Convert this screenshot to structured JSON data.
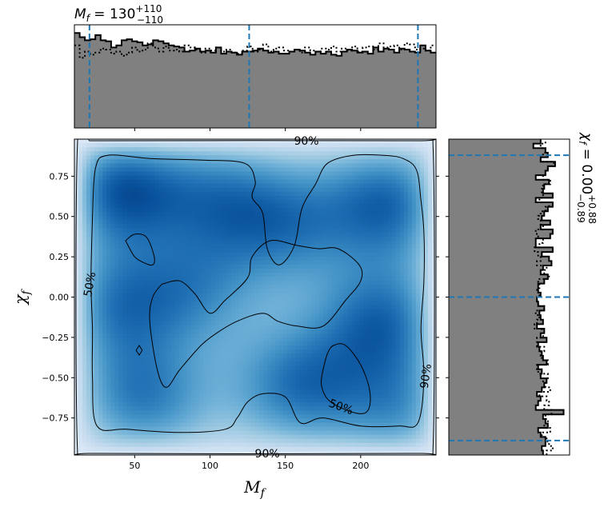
{
  "chart_data": [
    {
      "panel": "top-marginal",
      "type": "histogram",
      "title_parts": {
        "main": "M",
        "sub": "f",
        "eq": " = 130",
        "sup": "+110",
        "low": "−110"
      },
      "xlim": [
        10,
        250
      ],
      "bins_range": [
        10,
        250
      ],
      "quantile_lines": [
        20,
        126,
        238
      ],
      "filled_hist_rel": [
        0.92,
        0.88,
        0.85,
        0.86,
        0.9,
        0.85,
        0.84,
        0.78,
        0.8,
        0.85,
        0.86,
        0.84,
        0.83,
        0.8,
        0.81,
        0.85,
        0.84,
        0.82,
        0.8,
        0.79,
        0.78,
        0.74,
        0.75,
        0.77,
        0.74,
        0.75,
        0.73,
        0.78,
        0.72,
        0.74,
        0.73,
        0.71,
        0.74,
        0.74,
        0.75,
        0.77,
        0.75,
        0.73,
        0.74,
        0.72,
        0.72,
        0.74,
        0.76,
        0.75,
        0.73,
        0.71,
        0.74,
        0.72,
        0.74,
        0.71,
        0.7,
        0.74,
        0.76,
        0.75,
        0.73,
        0.74,
        0.72,
        0.78,
        0.74,
        0.77,
        0.76,
        0.73,
        0.77,
        0.76,
        0.74,
        0.73,
        0.8,
        0.75,
        0.73
      ],
      "dotted_hist_rel": [
        0.8,
        0.68,
        0.74,
        0.71,
        0.73,
        0.77,
        0.76,
        0.72,
        0.74,
        0.7,
        0.73,
        0.78,
        0.74,
        0.76,
        0.82,
        0.78,
        0.74,
        0.79,
        0.75,
        0.76,
        0.74,
        0.8,
        0.78,
        0.76,
        0.73,
        0.77,
        0.75,
        0.78,
        0.74,
        0.76,
        0.73,
        0.72,
        0.75,
        0.79,
        0.74,
        0.76,
        0.81,
        0.74,
        0.77,
        0.78,
        0.75,
        0.74,
        0.76,
        0.73,
        0.78,
        0.75,
        0.74,
        0.77,
        0.76,
        0.79,
        0.74,
        0.77,
        0.75,
        0.79,
        0.74,
        0.78,
        0.79,
        0.76,
        0.82,
        0.78,
        0.79,
        0.8,
        0.76,
        0.82,
        0.81,
        0.76,
        0.77,
        0.75,
        0.8
      ]
    },
    {
      "panel": "joint",
      "type": "heatmap",
      "xlabel": "M",
      "xlabel_sub": "f",
      "ylabel": "χ",
      "ylabel_sub": "f",
      "xlim": [
        10,
        250
      ],
      "ylim": [
        -0.98,
        0.98
      ],
      "xticks": [
        50,
        100,
        150,
        200
      ],
      "yticks": [
        0.75,
        0.5,
        0.25,
        0.0,
        -0.25,
        -0.5,
        -0.75
      ],
      "ytick_labels": [
        "0.75",
        "0.50",
        "0.25",
        "0.00",
        "−0.25",
        "−0.50",
        "−0.75"
      ],
      "colormap": "Blues",
      "density_peaks": [
        {
          "x": 38,
          "y": 0.67,
          "w": 1.0
        },
        {
          "x": 220,
          "y": 0.58,
          "w": 0.9
        },
        {
          "x": 215,
          "y": -0.15,
          "w": 0.85
        },
        {
          "x": 150,
          "y": 0.45,
          "w": 0.65
        },
        {
          "x": 35,
          "y": -0.05,
          "w": 0.7
        },
        {
          "x": 160,
          "y": -0.55,
          "w": 0.8
        },
        {
          "x": 55,
          "y": -0.62,
          "w": 0.75
        },
        {
          "x": 105,
          "y": 0.62,
          "w": 0.6
        },
        {
          "x": 90,
          "y": 0.05,
          "w": 0.55
        },
        {
          "x": 230,
          "y": -0.7,
          "w": 0.6
        }
      ],
      "contour_labels": [
        {
          "text": "90%",
          "x": 164,
          "y": 0.97,
          "rot": 0
        },
        {
          "text": "50%",
          "x": 20,
          "y": 0.08,
          "rot": -80
        },
        {
          "text": "50%",
          "x": 187,
          "y": -0.68,
          "rot": 20
        },
        {
          "text": "90%",
          "x": 243,
          "y": -0.49,
          "rot": -82
        },
        {
          "text": "90%",
          "x": 138,
          "y": -0.97,
          "rot": 0
        }
      ],
      "contour_50_outer": [
        [
          22,
          0.5
        ],
        [
          24,
          0.8
        ],
        [
          32,
          0.88
        ],
        [
          60,
          0.86
        ],
        [
          95,
          0.85
        ],
        [
          123,
          0.83
        ],
        [
          130,
          0.72
        ],
        [
          128,
          0.62
        ],
        [
          135,
          0.52
        ],
        [
          138,
          0.3
        ],
        [
          146,
          0.2
        ],
        [
          156,
          0.32
        ],
        [
          161,
          0.55
        ],
        [
          170,
          0.7
        ],
        [
          178,
          0.83
        ],
        [
          195,
          0.88
        ],
        [
          215,
          0.88
        ],
        [
          228,
          0.86
        ],
        [
          237,
          0.79
        ],
        [
          240,
          0.6
        ],
        [
          242,
          0.4
        ],
        [
          242,
          0.1
        ],
        [
          240,
          -0.2
        ],
        [
          242,
          -0.5
        ],
        [
          238,
          -0.78
        ],
        [
          225,
          -0.8
        ],
        [
          200,
          -0.8
        ],
        [
          175,
          -0.75
        ],
        [
          160,
          -0.78
        ],
        [
          150,
          -0.62
        ],
        [
          135,
          -0.6
        ],
        [
          125,
          -0.65
        ],
        [
          118,
          -0.75
        ],
        [
          110,
          -0.82
        ],
        [
          80,
          -0.84
        ],
        [
          45,
          -0.82
        ],
        [
          25,
          -0.8
        ],
        [
          22,
          -0.5
        ],
        [
          22,
          -0.2
        ],
        [
          21,
          0.1
        ],
        [
          22,
          0.5
        ]
      ],
      "contour_50_inner": [
        [
          68,
          0.08
        ],
        [
          80,
          0.1
        ],
        [
          90,
          0.02
        ],
        [
          100,
          -0.1
        ],
        [
          110,
          -0.02
        ],
        [
          125,
          0.12
        ],
        [
          128,
          0.25
        ],
        [
          140,
          0.35
        ],
        [
          158,
          0.32
        ],
        [
          172,
          0.3
        ],
        [
          185,
          0.3
        ],
        [
          199,
          0.2
        ],
        [
          200,
          0.1
        ],
        [
          190,
          -0.02
        ],
        [
          175,
          -0.18
        ],
        [
          158,
          -0.18
        ],
        [
          145,
          -0.15
        ],
        [
          135,
          -0.1
        ],
        [
          118,
          -0.15
        ],
        [
          105,
          -0.22
        ],
        [
          94,
          -0.3
        ],
        [
          80,
          -0.45
        ],
        [
          71,
          -0.56
        ],
        [
          65,
          -0.45
        ],
        [
          60,
          -0.15
        ],
        [
          62,
          0.0
        ],
        [
          68,
          0.08
        ]
      ],
      "contour_50_loop_a": [
        [
          44,
          0.35
        ],
        [
          50,
          0.39
        ],
        [
          58,
          0.37
        ],
        [
          63,
          0.25
        ],
        [
          62,
          0.2
        ],
        [
          57,
          0.21
        ],
        [
          50,
          0.25
        ],
        [
          44,
          0.35
        ]
      ],
      "contour_50_loop_b": [
        [
          175,
          -0.45
        ],
        [
          178,
          -0.35
        ],
        [
          182,
          -0.3
        ],
        [
          190,
          -0.3
        ],
        [
          200,
          -0.42
        ],
        [
          206,
          -0.58
        ],
        [
          205,
          -0.7
        ],
        [
          197,
          -0.72
        ],
        [
          180,
          -0.65
        ],
        [
          174,
          -0.55
        ],
        [
          175,
          -0.45
        ]
      ],
      "contour_50_diamond": [
        [
          53,
          -0.3
        ],
        [
          55,
          -0.33
        ],
        [
          53,
          -0.36
        ],
        [
          51,
          -0.33
        ],
        [
          53,
          -0.3
        ]
      ],
      "contour_90": [
        [
          20,
          0.97
        ],
        [
          12,
          0.95
        ],
        [
          12,
          -0.95
        ],
        [
          20,
          -0.97
        ],
        [
          240,
          -0.97
        ],
        [
          248,
          -0.95
        ],
        [
          248,
          0.95
        ],
        [
          240,
          0.97
        ],
        [
          20,
          0.97
        ]
      ]
    },
    {
      "panel": "right-marginal",
      "type": "histogram",
      "orientation": "horizontal",
      "title_parts": {
        "main": "χ",
        "sub": "f",
        "eq": " = 0.00",
        "sup": "+0.88",
        "low": "−0.89"
      },
      "ylim": [
        -0.98,
        0.98
      ],
      "bins_range": [
        -0.98,
        0.98
      ],
      "quantile_lines": [
        -0.89,
        0.0,
        0.88
      ],
      "filled_hist_rel": [
        0.78,
        0.77,
        0.8,
        0.8,
        0.76,
        0.74,
        0.82,
        0.8,
        0.78,
        0.95,
        0.72,
        0.74,
        0.76,
        0.73,
        0.77,
        0.79,
        0.81,
        0.76,
        0.77,
        0.74,
        0.81,
        0.78,
        0.77,
        0.75,
        0.74,
        0.81,
        0.76,
        0.79,
        0.73,
        0.78,
        0.76,
        0.75,
        0.79,
        0.74,
        0.73,
        0.76,
        0.74,
        0.74,
        0.79,
        0.82,
        0.76,
        0.78,
        0.85,
        0.83,
        0.77,
        0.86,
        0.72,
        0.72,
        0.84,
        0.86,
        0.76,
        0.84,
        0.77,
        0.79,
        0.82,
        0.86,
        0.72,
        0.86,
        0.78,
        0.79,
        0.83,
        0.72,
        0.8,
        0.82,
        0.88,
        0.76,
        0.82,
        0.8,
        0.7,
        0.76
      ],
      "dotted_hist_rel": [
        0.81,
        0.86,
        0.83,
        0.81,
        0.77,
        0.84,
        0.79,
        0.82,
        0.8,
        0.85,
        0.79,
        0.83,
        0.81,
        0.75,
        0.84,
        0.8,
        0.78,
        0.82,
        0.74,
        0.73,
        0.82,
        0.77,
        0.76,
        0.79,
        0.73,
        0.73,
        0.78,
        0.77,
        0.71,
        0.73,
        0.75,
        0.72,
        0.79,
        0.74,
        0.73,
        0.75,
        0.73,
        0.75,
        0.74,
        0.83,
        0.79,
        0.81,
        0.73,
        0.76,
        0.74,
        0.71,
        0.75,
        0.78,
        0.74,
        0.72,
        0.78,
        0.76,
        0.74,
        0.76,
        0.8,
        0.83,
        0.75,
        0.78,
        0.77,
        0.78,
        0.84,
        0.78,
        0.8,
        0.82,
        0.87,
        0.76,
        0.78,
        0.8,
        0.76,
        0.8
      ]
    }
  ]
}
